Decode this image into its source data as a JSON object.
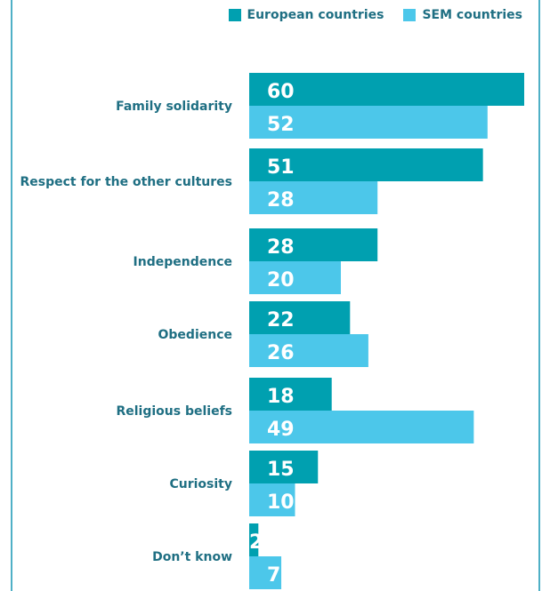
{
  "colors": {
    "frame": "#4fb0c6",
    "label_text": "#1f6f83",
    "bar_text": "#ffffff"
  },
  "legend": {
    "items": [
      {
        "label": "European countries",
        "color": "#00a0b0"
      },
      {
        "label": "SEM countries",
        "color": "#4cc7ea"
      }
    ]
  },
  "chart_data": {
    "type": "bar",
    "orientation": "horizontal",
    "categories": [
      "Family solidarity",
      "Respect for the other cultures",
      "Independence",
      "Obedience",
      "Religious beliefs",
      "Curiosity",
      "Don’t know"
    ],
    "series": [
      {
        "name": "European countries",
        "color": "#00a0b0",
        "values": [
          60,
          51,
          28,
          22,
          18,
          15,
          2
        ]
      },
      {
        "name": "SEM countries",
        "color": "#4cc7ea",
        "values": [
          52,
          28,
          20,
          26,
          49,
          10,
          7
        ]
      }
    ],
    "xlim": [
      0,
      60
    ],
    "data_labels": true,
    "grid": false,
    "legend_position": "top-right"
  }
}
